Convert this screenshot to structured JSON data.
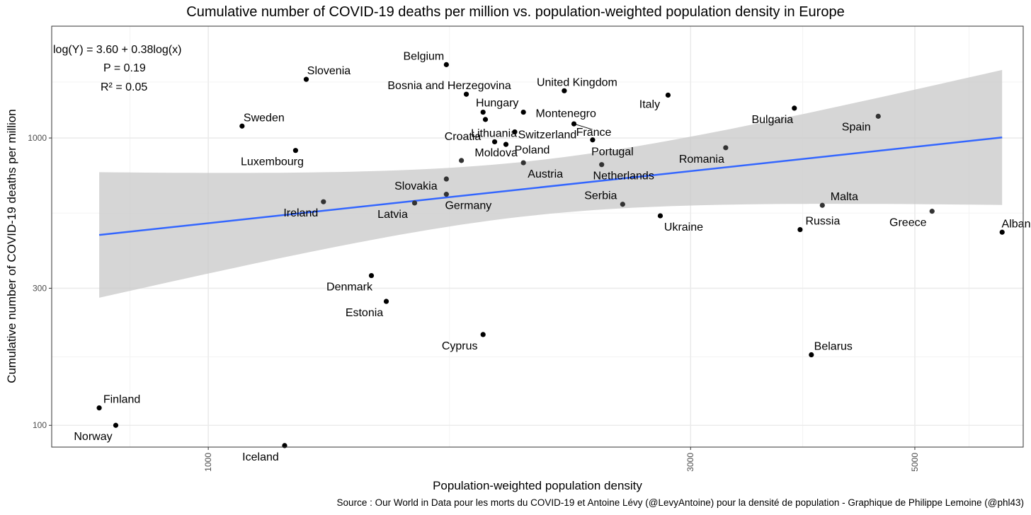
{
  "chart_data": {
    "type": "scatter",
    "title": "Cumulative number of COVID-19 deaths per million vs. population-weighted population density in Europe",
    "xlabel": "Population-weighted population density",
    "ylabel": "Cumulative number of COVID-19 deaths per million",
    "x_scale": "log",
    "y_scale": "log",
    "xlim": [
      700,
      6400
    ],
    "ylim": [
      84,
      2450
    ],
    "x_ticks": [
      1000,
      3000,
      5000
    ],
    "x_tick_labels": [
      "1000",
      "3000",
      "5000"
    ],
    "y_ticks": [
      100,
      300,
      1000
    ],
    "y_tick_labels": [
      "100",
      "300",
      "1000"
    ],
    "grid": true,
    "points": [
      {
        "name": "Belgium",
        "x": 1720,
        "y": 1800
      },
      {
        "name": "Slovenia",
        "x": 1250,
        "y": 1600
      },
      {
        "name": "Bosnia and Herzegovina",
        "x": 1800,
        "y": 1420
      },
      {
        "name": "United Kingdom",
        "x": 2250,
        "y": 1460
      },
      {
        "name": "Italy",
        "x": 2850,
        "y": 1410
      },
      {
        "name": "Hungary",
        "x": 1870,
        "y": 1230
      },
      {
        "name": "Montenegro",
        "x": 2050,
        "y": 1230
      },
      {
        "name": "Croatia",
        "x": 1880,
        "y": 1160
      },
      {
        "name": "France",
        "x": 2300,
        "y": 1120
      },
      {
        "name": "Switzerland",
        "x": 2010,
        "y": 1050
      },
      {
        "name": "Sweden",
        "x": 1080,
        "y": 1100
      },
      {
        "name": "Lithuania",
        "x": 1920,
        "y": 970
      },
      {
        "name": "Poland",
        "x": 1970,
        "y": 950
      },
      {
        "name": "Portugal",
        "x": 2400,
        "y": 985
      },
      {
        "name": "Bulgaria",
        "x": 3800,
        "y": 1270
      },
      {
        "name": "Spain",
        "x": 4600,
        "y": 1190
      },
      {
        "name": "Romania",
        "x": 3250,
        "y": 925
      },
      {
        "name": "Luxembourg",
        "x": 1220,
        "y": 905
      },
      {
        "name": "Moldova",
        "x": 1780,
        "y": 835
      },
      {
        "name": "Austria",
        "x": 2050,
        "y": 820
      },
      {
        "name": "Netherlands",
        "x": 2450,
        "y": 808
      },
      {
        "name": "Slovakia",
        "x": 1720,
        "y": 720
      },
      {
        "name": "Germany",
        "x": 1720,
        "y": 637
      },
      {
        "name": "Latvia",
        "x": 1600,
        "y": 594
      },
      {
        "name": "Ireland",
        "x": 1300,
        "y": 600
      },
      {
        "name": "Serbia",
        "x": 2570,
        "y": 588
      },
      {
        "name": "Ukraine",
        "x": 2800,
        "y": 536
      },
      {
        "name": "Malta",
        "x": 4050,
        "y": 583
      },
      {
        "name": "Greece",
        "x": 5200,
        "y": 556
      },
      {
        "name": "Russia",
        "x": 3850,
        "y": 480
      },
      {
        "name": "Albania",
        "x": 6100,
        "y": 470
      },
      {
        "name": "Denmark",
        "x": 1450,
        "y": 332
      },
      {
        "name": "Estonia",
        "x": 1500,
        "y": 270
      },
      {
        "name": "Cyprus",
        "x": 1870,
        "y": 207
      },
      {
        "name": "Belarus",
        "x": 3950,
        "y": 176
      },
      {
        "name": "Finland",
        "x": 780,
        "y": 115
      },
      {
        "name": "Norway",
        "x": 810,
        "y": 100
      },
      {
        "name": "Iceland",
        "x": 1190,
        "y": 85
      }
    ],
    "regression": {
      "intercept": 3.6,
      "slope": 0.38
    },
    "annotations": {
      "equation": "log(Y) = 3.60 + 0.38log(x)",
      "p_value": "P = 0.19",
      "r_squared": "R² = 0.05"
    },
    "colors": {
      "regression_line": "#3366ff",
      "confidence_band": "#d9d9d9",
      "points": "#000000",
      "grid": "#ebebeb"
    }
  },
  "source": "Source : Our World in Data pour les morts du COVID-19 et Antoine Lévy (@LevyAntoine) pour la densité de population - Graphique de Philippe Lemoine (@phl43)"
}
